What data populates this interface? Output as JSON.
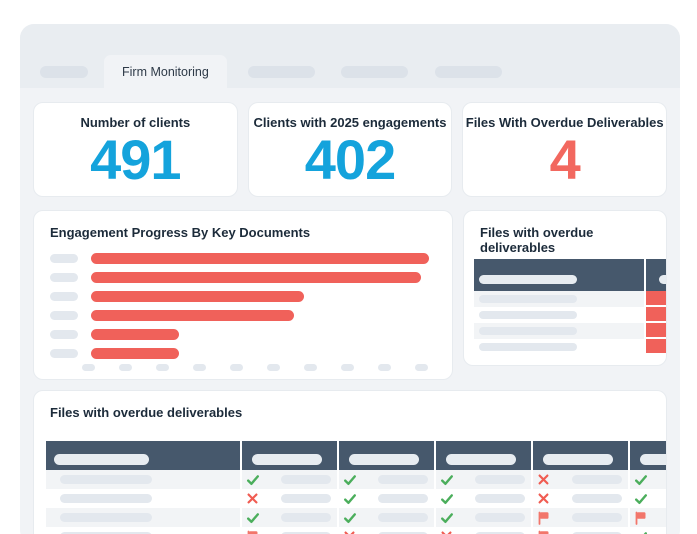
{
  "tabs": {
    "active_label": "Firm Monitoring",
    "placeholders_before": 1,
    "placeholders_after": 3
  },
  "kpi_cards": [
    {
      "label": "Number of clients",
      "value": "491",
      "value_color": "#14a3dc"
    },
    {
      "label": "Clients with 2025 engagements",
      "value": "402",
      "value_color": "#14a3dc"
    },
    {
      "label": "Files With Overdue Deliverables",
      "value": "4",
      "value_color": "#f2685f"
    }
  ],
  "chart_data": {
    "type": "bar",
    "orientation": "horizontal",
    "title": "Engagement Progress By Key Documents",
    "categories_redacted": true,
    "num_categories": 6,
    "values_pct": [
      100,
      97.6,
      63,
      60,
      26,
      26
    ],
    "x_tick_count": 10,
    "x_tick_labels_redacted": true,
    "bar_color": "#f0615a",
    "legend": "none",
    "grid": "off"
  },
  "overdue_panel": {
    "title": "Files with overdue deliverables",
    "table": {
      "column_headers_redacted": 2,
      "row_count": 4,
      "highlight_column_color": "#f0615a"
    }
  },
  "bottom_panel": {
    "title": "Files with overdue deliverables",
    "table": {
      "column_headers_redacted": 6,
      "rows": [
        {
          "statuses": [
            "check",
            "check",
            "check",
            "x",
            "check"
          ]
        },
        {
          "statuses": [
            "x",
            "check",
            "check",
            "x",
            "check"
          ]
        },
        {
          "statuses": [
            "check",
            "check",
            "check",
            "flag",
            "flag"
          ]
        },
        {
          "statuses": [
            "flag",
            "x",
            "x",
            "flag",
            "check"
          ]
        }
      ]
    }
  },
  "colors": {
    "page_background": "#ffffff",
    "card_background": "#f1f3f6",
    "tabbar_background": "#e9edf1",
    "table_header": "#46586c",
    "accent_blue": "#14a3dc",
    "alert_red": "#f2685f",
    "bar_red": "#f0615a",
    "check_green": "#4bae5c",
    "x_red": "#f05c52",
    "flag_red": "#f2766b",
    "placeholder_pill": "#e3e8ee"
  }
}
